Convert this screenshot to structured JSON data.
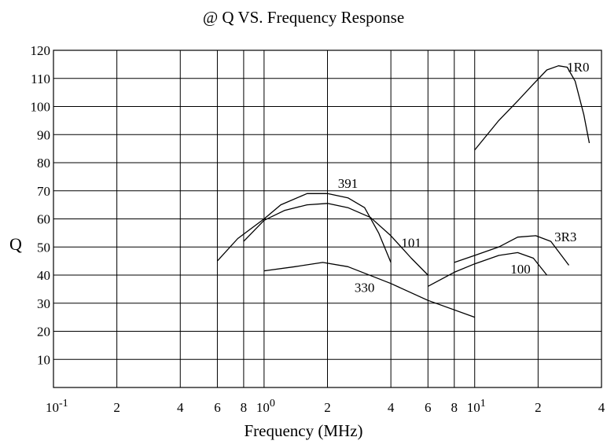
{
  "chart_data": {
    "type": "line",
    "title": "@ Q VS. Frequency Response",
    "xlabel": "Frequency (MHz)",
    "ylabel": "Q",
    "x_scale": "log",
    "xlim": [
      0.1,
      40
    ],
    "ylim": [
      0,
      120
    ],
    "grid": true,
    "y_ticks": [
      10,
      20,
      30,
      40,
      50,
      60,
      70,
      80,
      90,
      100,
      110,
      120
    ],
    "x_ticks": [
      {
        "value": 0.1,
        "base": "10",
        "exp": "-1"
      },
      {
        "value": 0.2,
        "label": "2"
      },
      {
        "value": 0.4,
        "label": "4"
      },
      {
        "value": 0.6,
        "label": "6"
      },
      {
        "value": 0.8,
        "label": "8"
      },
      {
        "value": 1,
        "base": "10",
        "exp": "0"
      },
      {
        "value": 2,
        "label": "2"
      },
      {
        "value": 4,
        "label": "4"
      },
      {
        "value": 6,
        "label": "6"
      },
      {
        "value": 8,
        "label": "8"
      },
      {
        "value": 10,
        "base": "10",
        "exp": "1"
      },
      {
        "value": 20,
        "label": "2"
      },
      {
        "value": 40,
        "label": "4"
      }
    ],
    "series": [
      {
        "name": "391",
        "x": [
          0.6,
          0.75,
          1.0,
          1.2,
          1.6,
          2.0,
          2.5,
          3.0,
          3.5,
          4.0
        ],
        "y": [
          45,
          53,
          60,
          65,
          69,
          69,
          67.5,
          64,
          55,
          44.5
        ]
      },
      {
        "name": "101",
        "x": [
          0.8,
          1.0,
          1.25,
          1.6,
          2.0,
          2.5,
          3.2,
          4.0,
          5.0,
          6.0
        ],
        "y": [
          52,
          59.5,
          63,
          65,
          65.5,
          64,
          60.5,
          54,
          46,
          40
        ]
      },
      {
        "name": "330",
        "x": [
          1.0,
          1.4,
          1.9,
          2.5,
          4.0,
          6.0,
          10.0
        ],
        "y": [
          41.5,
          43,
          44.5,
          43,
          37,
          31,
          25
        ]
      },
      {
        "name": "100",
        "x": [
          6.0,
          8.0,
          10.0,
          13.0,
          16.0,
          19.0,
          22.0
        ],
        "y": [
          36,
          41,
          44,
          47,
          48,
          46,
          40
        ]
      },
      {
        "name": "3R3",
        "x": [
          8.0,
          10.0,
          13.0,
          16.0,
          19.5,
          23.0,
          28.0
        ],
        "y": [
          44.5,
          47,
          50,
          53.5,
          54,
          52,
          43.5
        ]
      },
      {
        "name": "1R0",
        "x": [
          10.0,
          13.0,
          16.0,
          19.0,
          22.0,
          25.0,
          27.5,
          30.0,
          33.0,
          35.0
        ],
        "y": [
          84.5,
          95,
          102,
          108,
          113,
          114.5,
          114,
          109,
          97,
          87
        ]
      }
    ],
    "annotations": [
      {
        "text": "391",
        "x": 2.5,
        "y": 71
      },
      {
        "text": "101",
        "x": 5.0,
        "y": 50
      },
      {
        "text": "330",
        "x": 3.0,
        "y": 34
      },
      {
        "text": "100",
        "x": 16.5,
        "y": 40.5
      },
      {
        "text": "3R3",
        "x": 27.0,
        "y": 52
      },
      {
        "text": "1R0",
        "x": 31.0,
        "y": 112.5
      }
    ]
  }
}
